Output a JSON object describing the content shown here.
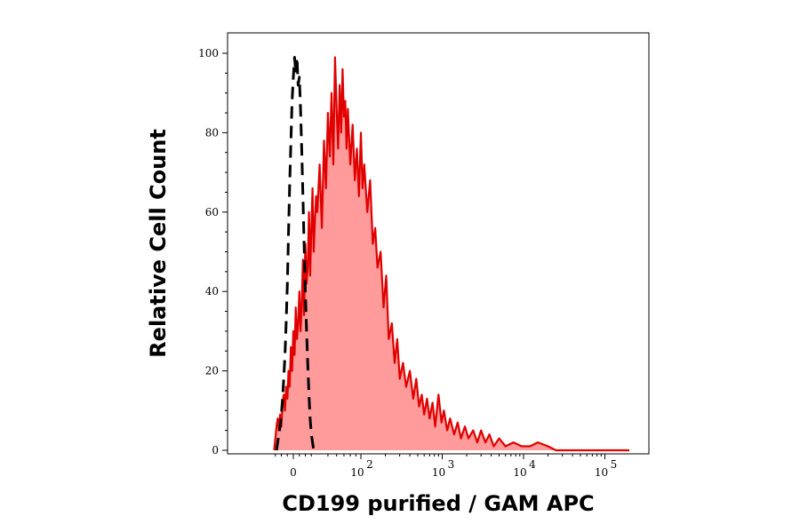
{
  "chart_data": {
    "type": "area",
    "xlabel": "CD199 purified / GAM APC",
    "ylabel": "Relative Cell Count",
    "x_scale": "biexponential",
    "xlim": [
      -40,
      200000
    ],
    "ylim": [
      0,
      105
    ],
    "grid": false,
    "legend": "none",
    "y_ticks": [
      0,
      20,
      40,
      60,
      80,
      100
    ],
    "y_tick_labels": [
      "0",
      "20",
      "40",
      "60",
      "80",
      "100"
    ],
    "x_ticks": [
      0,
      100,
      1000,
      10000,
      100000
    ],
    "x_tick_labels": [
      {
        "base": "0",
        "exp": ""
      },
      {
        "base": "10",
        "exp": "2"
      },
      {
        "base": "10",
        "exp": "3"
      },
      {
        "base": "10",
        "exp": "4"
      },
      {
        "base": "10",
        "exp": "5"
      }
    ],
    "series": [
      {
        "style": "filled",
        "color": "#e00000",
        "fill": "#ff9b9b",
        "points": [
          [
            -32,
            0
          ],
          [
            -30,
            3
          ],
          [
            -28,
            6
          ],
          [
            -26,
            8
          ],
          [
            -24,
            5
          ],
          [
            -22,
            9
          ],
          [
            -20,
            6
          ],
          [
            -18,
            12
          ],
          [
            -16,
            14
          ],
          [
            -14,
            10
          ],
          [
            -12,
            16
          ],
          [
            -10,
            13
          ],
          [
            -8,
            20
          ],
          [
            -6,
            16
          ],
          [
            -4,
            26
          ],
          [
            -2,
            20
          ],
          [
            0,
            30
          ],
          [
            2,
            24
          ],
          [
            4,
            36
          ],
          [
            6,
            28
          ],
          [
            8,
            32
          ],
          [
            10,
            40
          ],
          [
            12,
            30
          ],
          [
            14,
            36
          ],
          [
            16,
            48
          ],
          [
            18,
            34
          ],
          [
            20,
            52
          ],
          [
            22,
            42
          ],
          [
            24,
            46
          ],
          [
            26,
            60
          ],
          [
            28,
            44
          ],
          [
            30,
            56
          ],
          [
            32,
            66
          ],
          [
            34,
            50
          ],
          [
            36,
            58
          ],
          [
            38,
            64
          ],
          [
            40,
            60
          ],
          [
            42,
            72
          ],
          [
            44,
            56
          ],
          [
            46,
            78
          ],
          [
            48,
            66
          ],
          [
            50,
            85
          ],
          [
            52,
            74
          ],
          [
            54,
            90
          ],
          [
            56,
            72
          ],
          [
            58,
            99
          ],
          [
            60,
            86
          ],
          [
            62,
            76
          ],
          [
            64,
            92
          ],
          [
            66,
            80
          ],
          [
            68,
            96
          ],
          [
            70,
            84
          ],
          [
            72,
            88
          ],
          [
            74,
            76
          ],
          [
            76,
            86
          ],
          [
            80,
            72
          ],
          [
            84,
            82
          ],
          [
            88,
            68
          ],
          [
            92,
            76
          ],
          [
            96,
            64
          ],
          [
            100,
            80
          ],
          [
            105,
            66
          ],
          [
            110,
            72
          ],
          [
            120,
            60
          ],
          [
            130,
            68
          ],
          [
            140,
            52
          ],
          [
            150,
            56
          ],
          [
            160,
            46
          ],
          [
            175,
            50
          ],
          [
            190,
            36
          ],
          [
            205,
            44
          ],
          [
            220,
            28
          ],
          [
            240,
            32
          ],
          [
            260,
            22
          ],
          [
            280,
            28
          ],
          [
            300,
            18
          ],
          [
            330,
            22
          ],
          [
            360,
            16
          ],
          [
            400,
            20
          ],
          [
            440,
            13
          ],
          [
            480,
            18
          ],
          [
            520,
            11
          ],
          [
            560,
            14
          ],
          [
            600,
            9
          ],
          [
            650,
            13
          ],
          [
            700,
            8
          ],
          [
            760,
            12
          ],
          [
            820,
            6
          ],
          [
            900,
            14
          ],
          [
            980,
            7
          ],
          [
            1050,
            10
          ],
          [
            1150,
            5
          ],
          [
            1250,
            8
          ],
          [
            1400,
            4
          ],
          [
            1550,
            7
          ],
          [
            1700,
            3
          ],
          [
            1900,
            6
          ],
          [
            2100,
            3
          ],
          [
            2400,
            5
          ],
          [
            2700,
            2
          ],
          [
            3000,
            5
          ],
          [
            3400,
            2
          ],
          [
            3800,
            4
          ],
          [
            4300,
            1
          ],
          [
            5000,
            3
          ],
          [
            6000,
            1
          ],
          [
            7500,
            2
          ],
          [
            9500,
            1
          ],
          [
            12000,
            1
          ],
          [
            15000,
            2
          ],
          [
            20000,
            1
          ],
          [
            25000,
            0
          ],
          [
            40000,
            0
          ],
          [
            80000,
            0
          ],
          [
            200000,
            0
          ]
        ]
      },
      {
        "style": "dashed",
        "color": "#000000",
        "points": [
          [
            -28,
            0
          ],
          [
            -26,
            2
          ],
          [
            -24,
            4
          ],
          [
            -22,
            6
          ],
          [
            -20,
            9
          ],
          [
            -18,
            13
          ],
          [
            -16,
            18
          ],
          [
            -14,
            24
          ],
          [
            -12,
            32
          ],
          [
            -10,
            42
          ],
          [
            -8,
            55
          ],
          [
            -6,
            67
          ],
          [
            -4,
            78
          ],
          [
            -2,
            88
          ],
          [
            0,
            94
          ],
          [
            2,
            99
          ],
          [
            4,
            95
          ],
          [
            6,
            99
          ],
          [
            8,
            92
          ],
          [
            10,
            94
          ],
          [
            12,
            86
          ],
          [
            14,
            76
          ],
          [
            16,
            64
          ],
          [
            18,
            52
          ],
          [
            20,
            40
          ],
          [
            22,
            30
          ],
          [
            24,
            22
          ],
          [
            26,
            14
          ],
          [
            28,
            8
          ],
          [
            30,
            4
          ],
          [
            32,
            2
          ],
          [
            34,
            0
          ],
          [
            40,
            0
          ]
        ]
      }
    ]
  }
}
